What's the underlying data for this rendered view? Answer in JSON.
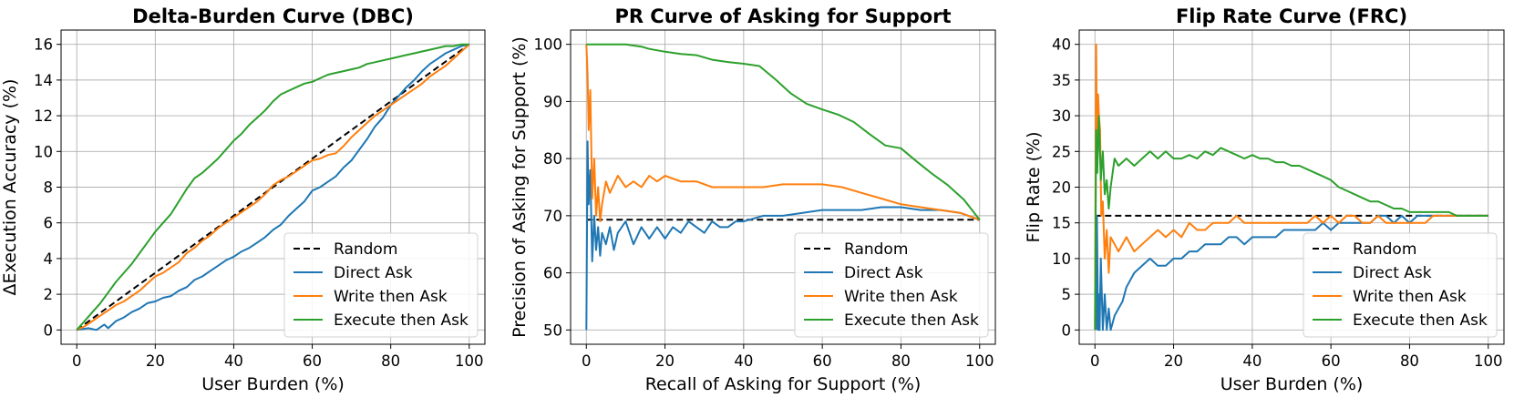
{
  "chart_data": [
    {
      "type": "line",
      "title": "Delta-Burden Curve (DBC)",
      "xlabel": "User Burden (%)",
      "ylabel": "ΔExecution Accuracy (%)",
      "xlim": [
        -4,
        104
      ],
      "ylim": [
        -0.8,
        16.8
      ],
      "xticks": [
        0,
        20,
        40,
        60,
        80,
        100
      ],
      "yticks": [
        0,
        2,
        4,
        6,
        8,
        10,
        12,
        14,
        16
      ],
      "grid": true,
      "legend_position": "lower-right",
      "series": [
        {
          "name": "Random",
          "color": "#000000",
          "dash": true,
          "x": [
            0,
            100
          ],
          "y": [
            0,
            16
          ]
        },
        {
          "name": "Direct Ask",
          "color": "#1f77b4",
          "x": [
            0,
            3,
            5,
            7,
            8,
            10,
            12,
            14,
            16,
            18,
            20,
            22,
            24,
            26,
            28,
            30,
            32,
            34,
            36,
            38,
            40,
            42,
            44,
            46,
            48,
            50,
            52,
            54,
            56,
            58,
            60,
            62,
            64,
            66,
            68,
            70,
            72,
            74,
            76,
            78,
            80,
            82,
            84,
            86,
            88,
            90,
            92,
            94,
            96,
            98,
            100
          ],
          "y": [
            0,
            0.1,
            0,
            0.3,
            0.1,
            0.5,
            0.7,
            1.0,
            1.2,
            1.5,
            1.6,
            1.8,
            1.9,
            2.2,
            2.4,
            2.8,
            3.0,
            3.3,
            3.6,
            3.9,
            4.1,
            4.4,
            4.6,
            4.9,
            5.2,
            5.6,
            5.9,
            6.4,
            6.8,
            7.2,
            7.8,
            8.0,
            8.3,
            8.6,
            9.1,
            9.5,
            10.1,
            10.7,
            11.4,
            11.9,
            12.6,
            13.1,
            13.6,
            14.0,
            14.5,
            14.9,
            15.2,
            15.5,
            15.7,
            15.9,
            16.0
          ]
        },
        {
          "name": "Write then Ask",
          "color": "#ff7f0e",
          "x": [
            0,
            2,
            4,
            6,
            8,
            10,
            12,
            14,
            16,
            18,
            20,
            22,
            24,
            26,
            28,
            30,
            32,
            34,
            36,
            38,
            40,
            42,
            44,
            46,
            48,
            50,
            52,
            54,
            56,
            58,
            60,
            62,
            64,
            66,
            68,
            70,
            72,
            74,
            76,
            78,
            80,
            82,
            84,
            86,
            88,
            90,
            92,
            94,
            96,
            98,
            100
          ],
          "y": [
            0,
            0.2,
            0.5,
            0.8,
            1.1,
            1.4,
            1.6,
            1.9,
            2.2,
            2.6,
            3.0,
            3.2,
            3.5,
            3.8,
            4.3,
            4.6,
            5.0,
            5.3,
            5.7,
            6.0,
            6.3,
            6.6,
            6.9,
            7.2,
            7.6,
            8.1,
            8.4,
            8.6,
            8.9,
            9.2,
            9.5,
            9.6,
            9.8,
            9.9,
            10.3,
            10.8,
            11.2,
            11.6,
            12.0,
            12.3,
            12.6,
            12.9,
            13.2,
            13.5,
            13.8,
            14.2,
            14.5,
            14.8,
            15.2,
            15.6,
            16.0
          ]
        },
        {
          "name": "Execute then Ask",
          "color": "#2ca02c",
          "x": [
            0,
            2,
            4,
            6,
            8,
            10,
            12,
            14,
            16,
            18,
            20,
            22,
            24,
            26,
            28,
            30,
            32,
            34,
            36,
            38,
            40,
            42,
            44,
            46,
            48,
            50,
            52,
            54,
            56,
            58,
            60,
            62,
            64,
            66,
            68,
            70,
            72,
            74,
            76,
            78,
            80,
            82,
            84,
            86,
            88,
            90,
            92,
            94,
            96,
            98,
            100
          ],
          "y": [
            0,
            0.5,
            1.0,
            1.5,
            2.1,
            2.7,
            3.2,
            3.7,
            4.3,
            4.9,
            5.5,
            6.0,
            6.5,
            7.2,
            7.9,
            8.5,
            8.8,
            9.2,
            9.6,
            10.1,
            10.6,
            11.0,
            11.5,
            11.9,
            12.3,
            12.8,
            13.2,
            13.4,
            13.6,
            13.8,
            13.9,
            14.1,
            14.3,
            14.4,
            14.5,
            14.6,
            14.7,
            14.9,
            15.0,
            15.1,
            15.2,
            15.3,
            15.4,
            15.5,
            15.6,
            15.7,
            15.8,
            15.9,
            15.9,
            16.0,
            16.0
          ]
        }
      ]
    },
    {
      "type": "line",
      "title": "PR Curve of Asking for Support",
      "xlabel": "Recall of Asking for Support (%)",
      "ylabel": "Precision of Asking for Support (%)",
      "xlim": [
        -4,
        104
      ],
      "ylim": [
        47.5,
        102.5
      ],
      "xticks": [
        0,
        20,
        40,
        60,
        80,
        100
      ],
      "yticks": [
        50,
        60,
        70,
        80,
        90,
        100
      ],
      "grid": true,
      "legend_position": "lower-right",
      "series": [
        {
          "name": "Random",
          "color": "#000000",
          "dash": true,
          "x": [
            0,
            100
          ],
          "y": [
            69.3,
            69.3
          ]
        },
        {
          "name": "Direct Ask",
          "color": "#1f77b4",
          "x": [
            0,
            0.3,
            0.6,
            1,
            1.5,
            2,
            2.5,
            3,
            3.5,
            4,
            5,
            6,
            7,
            8,
            10,
            12,
            14,
            16,
            18,
            20,
            22,
            24,
            26,
            28,
            30,
            32,
            34,
            36,
            38,
            40,
            45,
            50,
            55,
            60,
            65,
            70,
            75,
            80,
            85,
            90,
            95,
            100
          ],
          "y": [
            50,
            83,
            72,
            78,
            62,
            70,
            64,
            68,
            63,
            67,
            65,
            68,
            64,
            67,
            69,
            65,
            68,
            66,
            68,
            66,
            68,
            67,
            69,
            68,
            67,
            69,
            68,
            68,
            69,
            69,
            70,
            70,
            70.5,
            71,
            71,
            71,
            71.5,
            71.5,
            71,
            71,
            70.5,
            69.3
          ]
        },
        {
          "name": "Write then Ask",
          "color": "#ff7f0e",
          "x": [
            0,
            0.3,
            0.6,
            1,
            1.5,
            2,
            2.5,
            3,
            3.5,
            4,
            5,
            6,
            8,
            10,
            12,
            14,
            16,
            18,
            20,
            24,
            28,
            32,
            36,
            40,
            45,
            50,
            55,
            60,
            65,
            70,
            75,
            80,
            85,
            90,
            95,
            100
          ],
          "y": [
            100,
            95,
            85,
            92,
            73,
            80,
            70,
            75,
            69,
            72,
            76,
            74,
            77,
            75,
            76,
            75,
            77,
            76,
            77,
            76,
            76,
            75,
            75,
            75,
            75,
            75.5,
            75.5,
            75.5,
            75,
            74,
            73,
            72,
            71.5,
            71,
            70.5,
            69.3
          ]
        },
        {
          "name": "Execute then Ask",
          "color": "#2ca02c",
          "x": [
            0,
            0.5,
            1,
            5,
            10,
            14,
            16,
            20,
            24,
            28,
            32,
            36,
            40,
            44,
            48,
            52,
            56,
            60,
            64,
            68,
            72,
            76,
            80,
            84,
            88,
            92,
            96,
            100
          ],
          "y": [
            100,
            100,
            100,
            100,
            100,
            99.6,
            99.2,
            98.7,
            98.3,
            98.1,
            97.3,
            96.9,
            96.6,
            96.2,
            93.9,
            91.4,
            89.6,
            88.6,
            87.7,
            86.4,
            84.3,
            82.3,
            81.8,
            79.5,
            77.3,
            75.3,
            72.8,
            69.3
          ]
        }
      ]
    },
    {
      "type": "line",
      "title": "Flip Rate Curve (FRC)",
      "xlabel": "User Burden (%)",
      "ylabel": "Flip Rate (%)",
      "xlim": [
        -4,
        104
      ],
      "ylim": [
        -2,
        42
      ],
      "xticks": [
        0,
        20,
        40,
        60,
        80,
        100
      ],
      "yticks": [
        0,
        5,
        10,
        15,
        20,
        25,
        30,
        35,
        40
      ],
      "grid": true,
      "legend_position": "lower-right",
      "series": [
        {
          "name": "Random",
          "color": "#000000",
          "dash": true,
          "x": [
            0,
            100
          ],
          "y": [
            16,
            16
          ]
        },
        {
          "name": "Direct Ask",
          "color": "#1f77b4",
          "x": [
            0.3,
            0.5,
            0.8,
            1,
            1.2,
            1.5,
            2,
            2.5,
            3,
            3.5,
            4,
            4.5,
            5,
            6,
            7,
            8,
            10,
            12,
            14,
            16,
            18,
            20,
            22,
            24,
            26,
            28,
            30,
            32,
            34,
            36,
            38,
            40,
            42,
            44,
            46,
            48,
            50,
            52,
            54,
            56,
            58,
            60,
            62,
            64,
            66,
            68,
            70,
            72,
            74,
            76,
            78,
            80,
            82,
            84,
            86,
            88,
            90,
            92,
            94,
            96,
            98,
            100
          ],
          "y": [
            0,
            16,
            0,
            5,
            0,
            10,
            0,
            5,
            0,
            3,
            0,
            1,
            2,
            3,
            4,
            6,
            8,
            9,
            10,
            9,
            9,
            10,
            10,
            11,
            11,
            12,
            12,
            12,
            13,
            13,
            12,
            13,
            13,
            13,
            13,
            14,
            14,
            14,
            14,
            14,
            15,
            14,
            15,
            15,
            15,
            15,
            15,
            16,
            16,
            15,
            16,
            15,
            16,
            16,
            16,
            16,
            16,
            16,
            16,
            16,
            16,
            16
          ]
        },
        {
          "name": "Write then Ask",
          "color": "#ff7f0e",
          "x": [
            0,
            0.3,
            0.5,
            0.8,
            1,
            1.3,
            1.6,
            2,
            2.5,
            3,
            3.5,
            4,
            5,
            6,
            8,
            10,
            12,
            14,
            16,
            18,
            20,
            22,
            24,
            26,
            28,
            30,
            32,
            34,
            36,
            38,
            40,
            42,
            44,
            46,
            48,
            50,
            52,
            54,
            56,
            58,
            60,
            62,
            64,
            66,
            68,
            70,
            72,
            74,
            76,
            78,
            80,
            82,
            84,
            86,
            88,
            90,
            92,
            94,
            96,
            98,
            100
          ],
          "y": [
            0,
            40,
            26,
            33,
            30,
            28,
            16,
            18,
            10,
            14,
            8,
            13,
            12,
            11,
            13,
            11,
            12,
            13,
            14,
            13,
            14,
            13,
            15,
            14,
            14,
            15,
            15,
            15,
            16,
            15,
            15,
            15,
            15,
            15,
            15,
            15,
            15,
            15,
            16,
            15,
            16,
            15,
            16,
            16,
            15,
            15,
            16,
            15,
            15,
            15,
            15,
            15,
            15,
            16,
            16,
            16,
            16,
            16,
            16,
            16,
            16
          ]
        },
        {
          "name": "Execute then Ask",
          "color": "#2ca02c",
          "x": [
            0,
            0.3,
            0.6,
            1,
            1.5,
            2,
            2.5,
            3,
            3.5,
            4,
            5,
            6,
            8,
            10,
            12,
            14,
            16,
            18,
            20,
            22,
            24,
            26,
            28,
            30,
            32,
            34,
            36,
            38,
            40,
            42,
            44,
            46,
            48,
            50,
            52,
            54,
            56,
            58,
            60,
            62,
            64,
            66,
            68,
            70,
            72,
            74,
            76,
            78,
            80,
            82,
            84,
            86,
            88,
            90,
            92,
            94,
            96,
            98,
            100
          ],
          "y": [
            0,
            28,
            22,
            30,
            21,
            25,
            19,
            21,
            17,
            20,
            24,
            23,
            24,
            23,
            24,
            25,
            24,
            25,
            24,
            24,
            24.5,
            24,
            25,
            24.5,
            25.5,
            25,
            24.5,
            24,
            24.5,
            24,
            24,
            23.5,
            23.5,
            23,
            23,
            22.5,
            22,
            21.5,
            21,
            20,
            19.5,
            19,
            18.5,
            18,
            18,
            17.5,
            17,
            17,
            16.5,
            16.5,
            16.5,
            16.5,
            16.5,
            16.5,
            16,
            16,
            16,
            16,
            16
          ]
        }
      ]
    }
  ]
}
